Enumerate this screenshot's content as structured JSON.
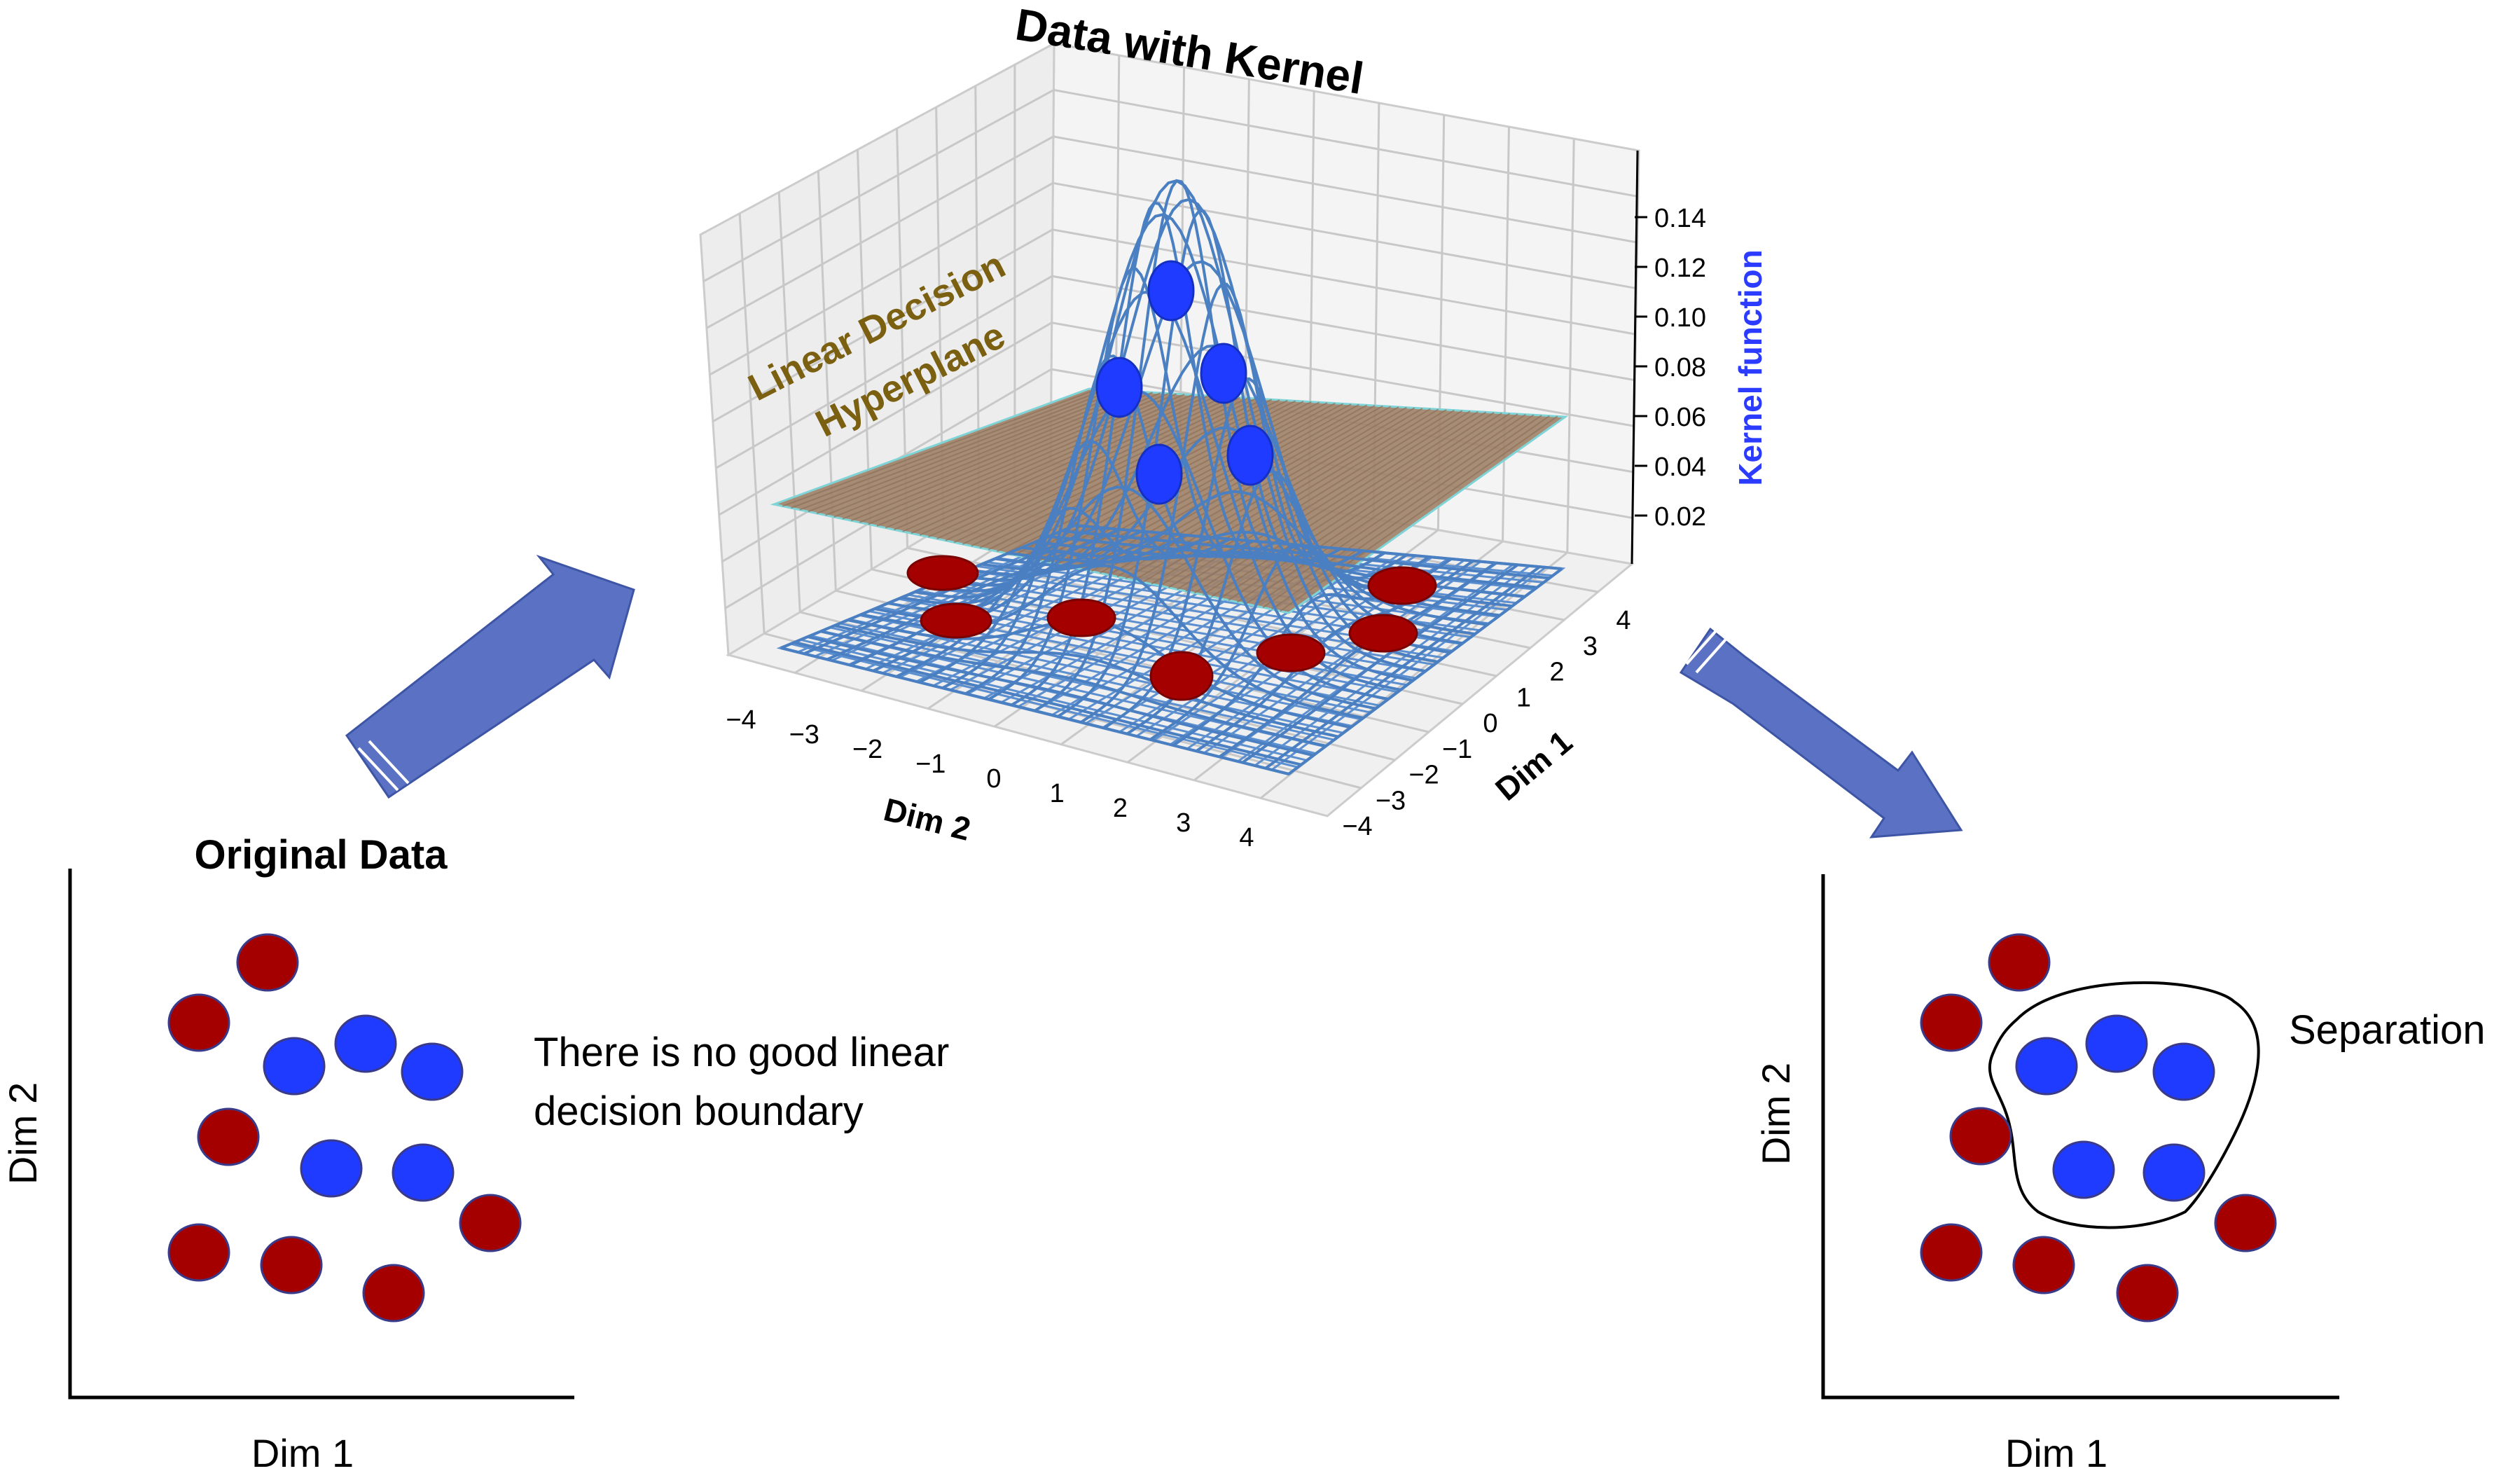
{
  "kernel_panel": {
    "title": "Data with Kernel",
    "z_axis_label": "Kernel function",
    "z_ticks": [
      "0.14",
      "0.12",
      "0.10",
      "0.08",
      "0.06",
      "0.04",
      "0.02"
    ],
    "x_axis_label": "Dim 2",
    "x_ticks": [
      "−4",
      "−3",
      "−2",
      "−1",
      "0",
      "1",
      "2",
      "3",
      "4"
    ],
    "y_axis_label": "Dim 1",
    "y_ticks": [
      "−4",
      "−3",
      "−2",
      "−1",
      "0",
      "1",
      "2",
      "3",
      "4"
    ],
    "hyperplane_label_line1": "Linear Decision",
    "hyperplane_label_line2": "Hyperplane"
  },
  "left_panel": {
    "title": "Original Data",
    "x_label": "Dim 1",
    "y_label": "Dim 2",
    "note_line1": "There is no good linear",
    "note_line2": "decision boundary"
  },
  "right_panel": {
    "x_label": "Dim 1",
    "y_label": "Dim 2",
    "annotation": "Separation"
  },
  "colors": {
    "class_red": "#a50000",
    "class_blue": "#1f3bff",
    "mesh": "#5b8fd0",
    "hyperplane": "#a0826a",
    "arrow": "#5b72c4",
    "hyperplane_text": "#7a6010",
    "z_label": "#2b3bff"
  }
}
